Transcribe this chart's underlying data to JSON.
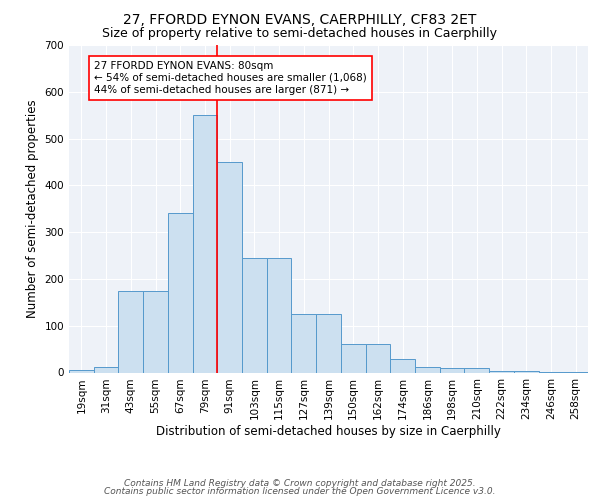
{
  "title1": "27, FFORDD EYNON EVANS, CAERPHILLY, CF83 2ET",
  "title2": "Size of property relative to semi-detached houses in Caerphilly",
  "xlabel": "Distribution of semi-detached houses by size in Caerphilly",
  "ylabel": "Number of semi-detached properties",
  "categories": [
    "19sqm",
    "31sqm",
    "43sqm",
    "55sqm",
    "67sqm",
    "79sqm",
    "91sqm",
    "103sqm",
    "115sqm",
    "127sqm",
    "139sqm",
    "150sqm",
    "162sqm",
    "174sqm",
    "186sqm",
    "198sqm",
    "210sqm",
    "222sqm",
    "234sqm",
    "246sqm",
    "258sqm"
  ],
  "values": [
    5,
    12,
    175,
    175,
    340,
    550,
    450,
    245,
    245,
    125,
    125,
    60,
    60,
    28,
    12,
    10,
    10,
    3,
    3,
    2,
    2
  ],
  "bar_color": "#cce0f0",
  "bar_edge_color": "#5599cc",
  "vline_x_idx": 5,
  "vline_color": "red",
  "annotation_text": "27 FFORDD EYNON EVANS: 80sqm\n← 54% of semi-detached houses are smaller (1,068)\n44% of semi-detached houses are larger (871) →",
  "ylim": [
    0,
    700
  ],
  "yticks": [
    0,
    100,
    200,
    300,
    400,
    500,
    600,
    700
  ],
  "footer1": "Contains HM Land Registry data © Crown copyright and database right 2025.",
  "footer2": "Contains public sector information licensed under the Open Government Licence v3.0.",
  "bg_color": "#eef2f8",
  "grid_color": "white",
  "title1_fontsize": 10,
  "title2_fontsize": 9,
  "axis_label_fontsize": 8.5,
  "tick_fontsize": 7.5,
  "annotation_fontsize": 7.5,
  "footer_fontsize": 6.5
}
